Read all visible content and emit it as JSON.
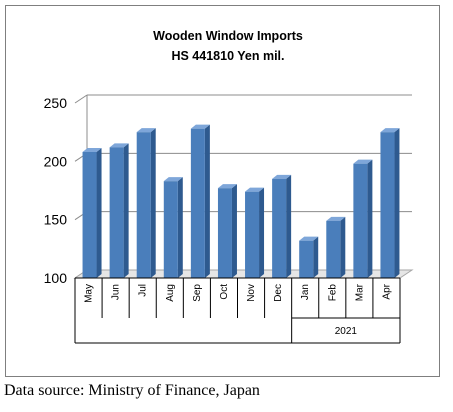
{
  "chart_data": {
    "type": "bar",
    "title": "Wooden Window Imports",
    "subtitle": "HS 441810 Yen mil.",
    "categories": [
      "May",
      "Jun",
      "Jul",
      "Aug",
      "Sep",
      "Oct",
      "Nov",
      "Dec",
      "Jan",
      "Feb",
      "Mar",
      "Apr"
    ],
    "values": [
      208,
      212,
      225,
      183,
      228,
      177,
      174,
      185,
      132,
      149,
      198,
      225
    ],
    "year_group": {
      "label": "2021",
      "categories": [
        "Jan",
        "Feb",
        "Mar",
        "Apr"
      ]
    },
    "ylim": [
      100,
      250
    ],
    "yticks": [
      "100",
      "150",
      "200",
      "250"
    ],
    "grid": true,
    "style": "3d-column",
    "bar_color": "#4a7ebb"
  },
  "source_note": "Data source: Ministry of Finance, Japan"
}
